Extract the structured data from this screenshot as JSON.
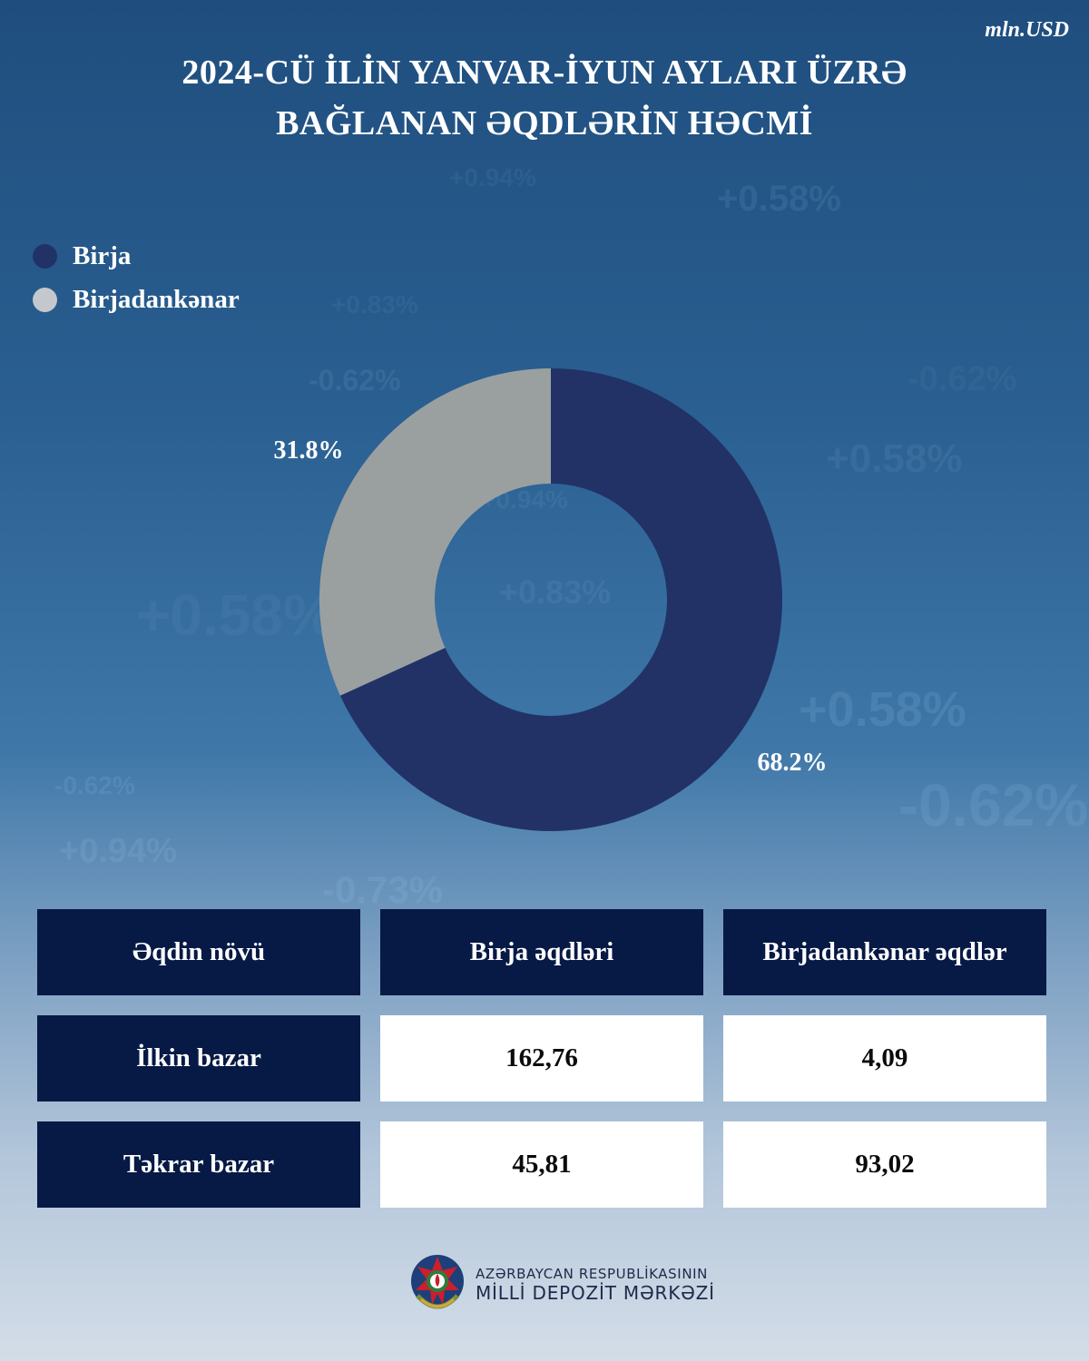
{
  "header": {
    "unit": "mln.USD",
    "title_line1": "2024-CÜ İLİN YANVAR-İYUN AYLARI ÜZRƏ",
    "title_line2": "BAĞLANAN ƏQDLƏRİN HƏCMİ"
  },
  "chart_data": {
    "type": "pie",
    "donut": true,
    "title": "2024-CÜ İLİN YANVAR-İYUN AYLARI ÜZRƏ BAĞLANAN ƏQDLƏRİN HƏCMİ",
    "categories": [
      "Birja",
      "Birjadankənar"
    ],
    "values": [
      68.2,
      31.8
    ],
    "labels": [
      "68.2%",
      "31.8%"
    ],
    "colors": [
      "#223266",
      "#9aa0a0"
    ],
    "legend_position": "top-left"
  },
  "legend": [
    {
      "label": "Birja",
      "color": "#223266"
    },
    {
      "label": "Birjadankənar",
      "color": "#c4c8cc"
    }
  ],
  "table": {
    "headers": [
      "Əqdin növü",
      "Birja əqdləri",
      "Birjadankənar əqdlər"
    ],
    "rows": [
      {
        "type": "İlkin bazar",
        "exchange": "162,76",
        "otc": "4,09"
      },
      {
        "type": "Təkrar bazar",
        "exchange": "45,81",
        "otc": "93,02"
      }
    ]
  },
  "footer": {
    "org_line1": "AZƏRBAYCAN RESPUBLİKASININ",
    "org_line2": "MİLLİ DEPOZİT MƏRKƏZİ"
  },
  "background_texts": [
    "+0.58%",
    "-0.62%",
    "+0.94%",
    "+0.83%",
    "-0.73%",
    "+0.58%",
    "-0.62%",
    "+0.94%",
    "+0.58%",
    "+0.83%",
    "+0.94%",
    "-0.62%",
    "-0.62%",
    "+0.58%"
  ]
}
